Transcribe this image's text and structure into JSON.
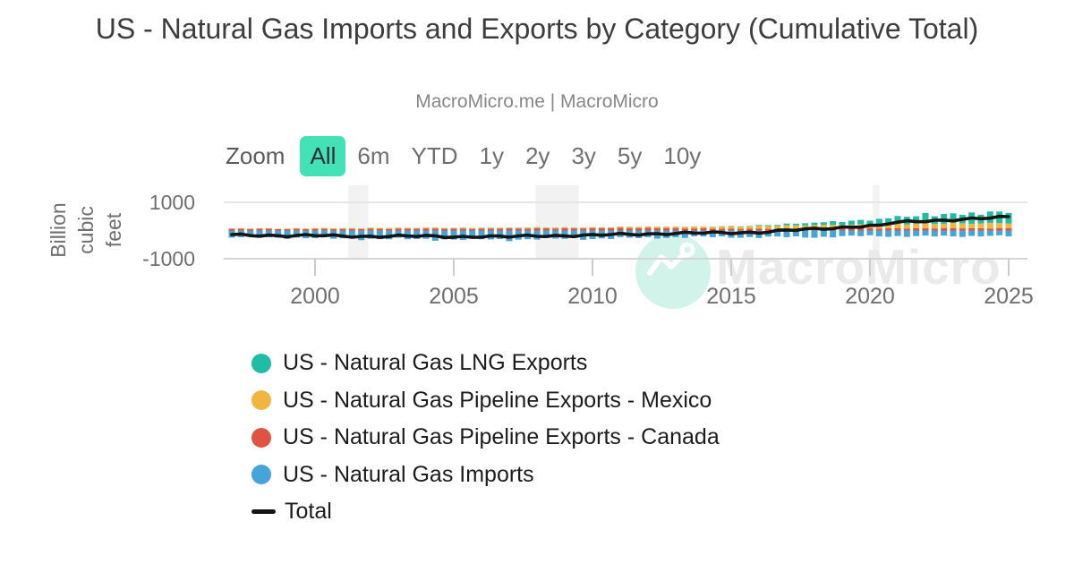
{
  "header": {
    "title": "US - Natural Gas Imports and Exports by Category (Cumulative Total)",
    "subtitle": "MacroMicro.me | MacroMicro"
  },
  "zoom_toolbar": {
    "label": "Zoom",
    "active_bg": "#42e1b6",
    "ranges": [
      {
        "label": "All",
        "active": true
      },
      {
        "label": "6m",
        "active": false
      },
      {
        "label": "YTD",
        "active": false
      },
      {
        "label": "1y",
        "active": false
      },
      {
        "label": "2y",
        "active": false
      },
      {
        "label": "3y",
        "active": false
      },
      {
        "label": "5y",
        "active": false
      },
      {
        "label": "10y",
        "active": false
      }
    ]
  },
  "y_axis": {
    "title_lines": [
      "Billion",
      "cubic",
      "feet"
    ],
    "ticks": [
      {
        "value": 1000,
        "label": "1000"
      },
      {
        "value": -1000,
        "label": "-1000"
      }
    ]
  },
  "x_axis": {
    "ticks": [
      {
        "value": 2000,
        "label": "2000"
      },
      {
        "value": 2005,
        "label": "2005"
      },
      {
        "value": 2010,
        "label": "2010"
      },
      {
        "value": 2015,
        "label": "2015"
      },
      {
        "value": 2020,
        "label": "2020"
      },
      {
        "value": 2025,
        "label": "2025"
      }
    ]
  },
  "legend": {
    "items": [
      {
        "label": "US - Natural Gas LNG Exports",
        "color": "#20bca4",
        "marker": "circle"
      },
      {
        "label": "US - Natural Gas Pipeline Exports - Mexico",
        "color": "#f0b640",
        "marker": "circle"
      },
      {
        "label": "US - Natural Gas Pipeline Exports - Canada",
        "color": "#e05243",
        "marker": "circle"
      },
      {
        "label": "US - Natural Gas Imports",
        "color": "#45a5d8",
        "marker": "circle"
      },
      {
        "label": "Total",
        "color": "#141414",
        "marker": "line"
      }
    ]
  },
  "watermark": {
    "text": "MacroMicro",
    "icon": "macromicro-logo",
    "circle_color": "#b5ecdc",
    "text_color": "#eaeaea"
  },
  "chart_data": {
    "type": "stacked-column+line",
    "title": "US - Natural Gas Imports and Exports by Category (Cumulative Total)",
    "ylabel": "Billion cubic feet",
    "ylim": [
      -1000,
      1600
    ],
    "y_tick_values": [
      1000,
      -1000
    ],
    "x_tick_values": [
      2000,
      2005,
      2010,
      2015,
      2020,
      2025
    ],
    "x_range": [
      1997,
      2025.4
    ],
    "bars_per_year": 3,
    "grid": true,
    "legend_position": "bottom-left",
    "years": [
      1997,
      1998,
      1999,
      2000,
      2001,
      2002,
      2003,
      2004,
      2005,
      2006,
      2007,
      2008,
      2009,
      2010,
      2011,
      2012,
      2013,
      2014,
      2015,
      2016,
      2017,
      2018,
      2019,
      2020,
      2021,
      2022,
      2023,
      2024,
      2025
    ],
    "series": [
      {
        "name": "US - Natural Gas LNG Exports",
        "type": "column",
        "color": "#20bca4",
        "values": [
          4,
          4,
          4,
          5,
          5,
          5,
          5,
          5,
          5,
          5,
          6,
          6,
          6,
          6,
          6,
          6,
          6,
          6,
          8,
          20,
          50,
          85,
          125,
          160,
          250,
          310,
          330,
          355,
          420
        ]
      },
      {
        "name": "US - Natural Gas Pipeline Exports - Mexico",
        "type": "column",
        "color": "#f0b640",
        "values": [
          15,
          15,
          15,
          25,
          25,
          30,
          30,
          30,
          30,
          30,
          30,
          30,
          30,
          30,
          35,
          45,
          55,
          60,
          80,
          95,
          110,
          120,
          130,
          135,
          160,
          165,
          170,
          175,
          182
        ]
      },
      {
        "name": "US - Natural Gas Pipeline Exports - Canada",
        "type": "column",
        "color": "#e05243",
        "values": [
          60,
          65,
          55,
          60,
          55,
          60,
          65,
          70,
          65,
          65,
          70,
          80,
          75,
          80,
          90,
          90,
          80,
          75,
          65,
          65,
          70,
          75,
          75,
          75,
          75,
          80,
          85,
          80,
          85
        ]
      },
      {
        "name": "US - Natural Gas Imports",
        "type": "column",
        "color": "#45a5d8",
        "values": [
          -240,
          -250,
          -255,
          -270,
          -285,
          -300,
          -300,
          -310,
          -320,
          -310,
          -330,
          -300,
          -290,
          -290,
          -270,
          -260,
          -240,
          -230,
          -230,
          -240,
          -230,
          -230,
          -215,
          -190,
          -200,
          -210,
          -200,
          -190,
          -205
        ]
      },
      {
        "name": "Total",
        "type": "line",
        "color": "#141414",
        "values": [
          -161,
          -166,
          -181,
          -180,
          -200,
          -205,
          -200,
          -205,
          -220,
          -210,
          -224,
          -184,
          -179,
          -174,
          -139,
          -119,
          -99,
          -89,
          -77,
          -60,
          0,
          50,
          115,
          180,
          285,
          345,
          385,
          420,
          482
        ]
      }
    ],
    "total_anomalies": [
      {
        "x": 2020.3,
        "delta": -60
      }
    ],
    "recession_bands": [
      [
        2001.2,
        2001.92
      ],
      [
        2007.95,
        2009.5
      ],
      [
        2020.1,
        2020.35
      ]
    ]
  }
}
